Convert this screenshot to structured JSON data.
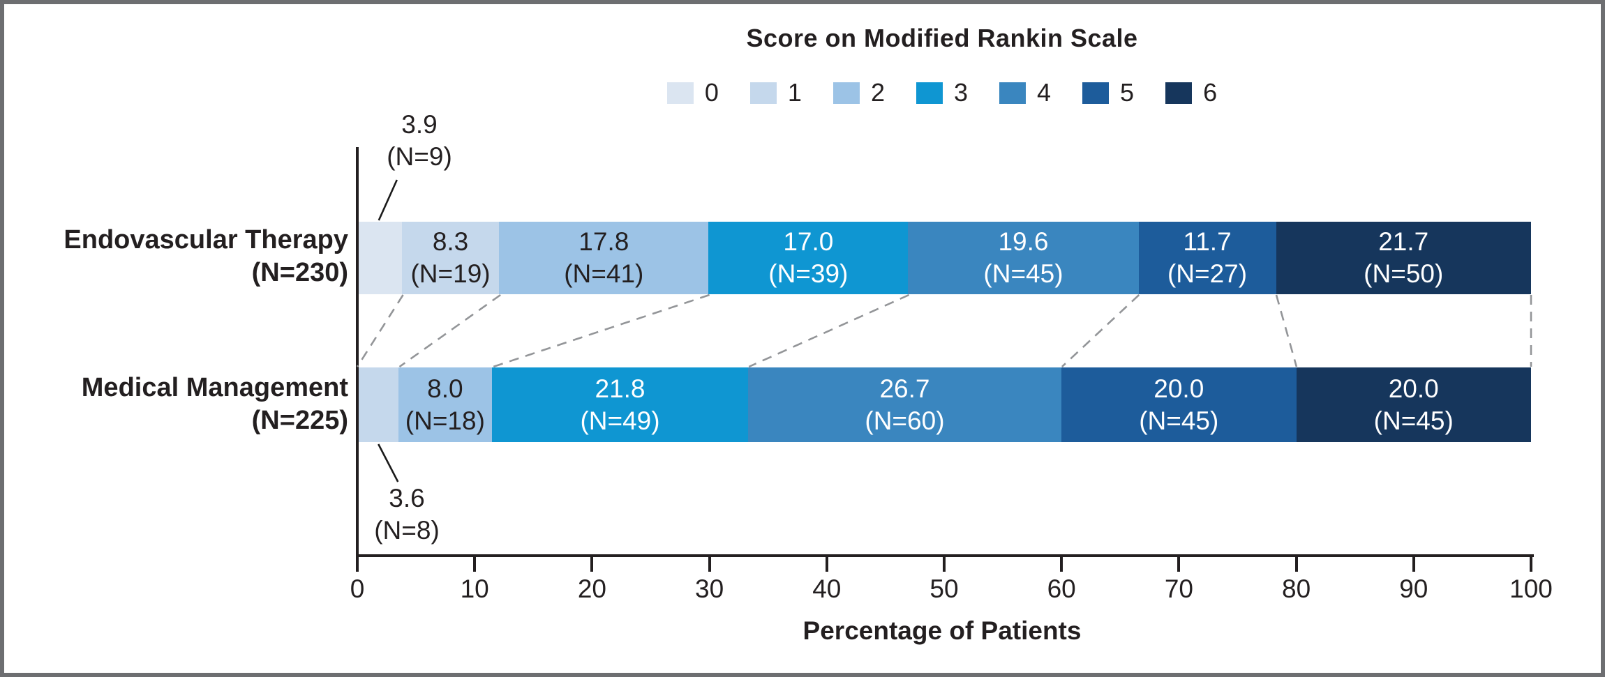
{
  "styles": {
    "frame_border": "#6d6e71",
    "background": "#ffffff",
    "axis_color": "#231f20",
    "dashed_connector_color": "#939598",
    "leader_line_color": "#1a1a1a",
    "text_dark": "#231f20",
    "text_light": "#ffffff"
  },
  "chart_data": {
    "type": "bar",
    "subtype": "horizontal-stacked-100pct",
    "legend": {
      "title": "Score on Modified Rankin Scale",
      "position": "top-center",
      "entries": [
        {
          "label": "0",
          "color": "#dbe5f1"
        },
        {
          "label": "1",
          "color": "#c5d8ec"
        },
        {
          "label": "2",
          "color": "#9cc3e6"
        },
        {
          "label": "3",
          "color": "#0f96d2"
        },
        {
          "label": "4",
          "color": "#3a86bf"
        },
        {
          "label": "5",
          "color": "#1d5c9b"
        },
        {
          "label": "6",
          "color": "#16365c"
        }
      ]
    },
    "xlabel": "Percentage of Patients",
    "xlim": [
      0,
      100
    ],
    "xticks": [
      "0",
      "10",
      "20",
      "30",
      "40",
      "50",
      "60",
      "70",
      "80",
      "90",
      "100"
    ],
    "grid": false,
    "groups": [
      {
        "name": "Endovascular Therapy",
        "n_label": "(N=230)",
        "segments": [
          {
            "score": "0",
            "value": 3.9,
            "value_label": "3.9",
            "n_label": "(N=9)",
            "label_placement": "callout-above",
            "text_color": "dark"
          },
          {
            "score": "1",
            "value": 8.3,
            "value_label": "8.3",
            "n_label": "(N=19)",
            "label_placement": "inside",
            "text_color": "dark"
          },
          {
            "score": "2",
            "value": 17.8,
            "value_label": "17.8",
            "n_label": "(N=41)",
            "label_placement": "inside",
            "text_color": "dark"
          },
          {
            "score": "3",
            "value": 17.0,
            "value_label": "17.0",
            "n_label": "(N=39)",
            "label_placement": "inside",
            "text_color": "light"
          },
          {
            "score": "4",
            "value": 19.6,
            "value_label": "19.6",
            "n_label": "(N=45)",
            "label_placement": "inside",
            "text_color": "light"
          },
          {
            "score": "5",
            "value": 11.7,
            "value_label": "11.7",
            "n_label": "(N=27)",
            "label_placement": "inside",
            "text_color": "light"
          },
          {
            "score": "6",
            "value": 21.7,
            "value_label": "21.7",
            "n_label": "(N=50)",
            "label_placement": "inside",
            "text_color": "light"
          }
        ]
      },
      {
        "name": "Medical Management",
        "n_label": "(N=225)",
        "segments": [
          {
            "score": "1",
            "value": 3.6,
            "value_label": "3.6",
            "n_label": "(N=8)",
            "label_placement": "callout-below",
            "text_color": "dark"
          },
          {
            "score": "2",
            "value": 8.0,
            "value_label": "8.0",
            "n_label": "(N=18)",
            "label_placement": "inside",
            "text_color": "dark"
          },
          {
            "score": "3",
            "value": 21.8,
            "value_label": "21.8",
            "n_label": "(N=49)",
            "label_placement": "inside",
            "text_color": "light"
          },
          {
            "score": "4",
            "value": 26.7,
            "value_label": "26.7",
            "n_label": "(N=60)",
            "label_placement": "inside",
            "text_color": "light"
          },
          {
            "score": "5",
            "value": 20.0,
            "value_label": "20.0",
            "n_label": "(N=45)",
            "label_placement": "inside",
            "text_color": "light"
          },
          {
            "score": "6",
            "value": 20.0,
            "value_label": "20.0",
            "n_label": "(N=45)",
            "label_placement": "inside",
            "text_color": "light"
          }
        ]
      }
    ]
  }
}
